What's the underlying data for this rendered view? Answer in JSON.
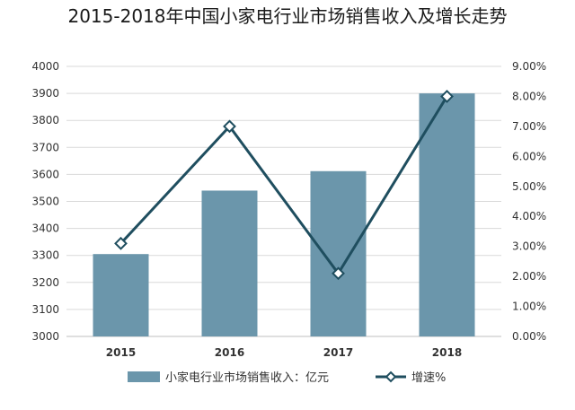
{
  "chart_data": {
    "type": "bar",
    "title": "2015-2018年中国小家电行业市场销售收入及增长走势",
    "categories": [
      "2015",
      "2016",
      "2017",
      "2018"
    ],
    "series": [
      {
        "name": "小家电行业市场销售收入：亿元",
        "type": "bar",
        "axis": "left",
        "color": "#6b96ab",
        "values": [
          3305,
          3540,
          3612,
          3900
        ]
      },
      {
        "name": "增速%",
        "type": "line",
        "axis": "right",
        "color": "#1f4e5f",
        "values": [
          3.1,
          7.0,
          2.1,
          8.0
        ]
      }
    ],
    "y_left": {
      "min": 3000,
      "max": 4000,
      "ticks": [
        "3000",
        "3100",
        "3200",
        "3300",
        "3400",
        "3500",
        "3600",
        "3700",
        "3800",
        "3900",
        "4000"
      ]
    },
    "y_right": {
      "min": 0,
      "max": 9,
      "ticks": [
        "0.00%",
        "1.00%",
        "2.00%",
        "3.00%",
        "4.00%",
        "5.00%",
        "6.00%",
        "7.00%",
        "8.00%",
        "9.00%"
      ]
    },
    "grid": true,
    "legend_position": "bottom"
  }
}
